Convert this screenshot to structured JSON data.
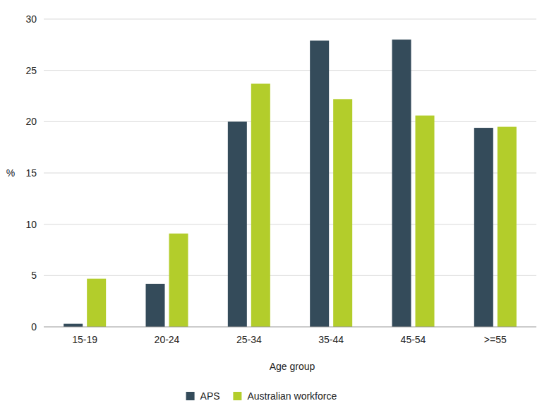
{
  "chart_data": {
    "type": "bar",
    "x_label": "Age group",
    "y_label": "%",
    "categories": [
      "15-19",
      "20-24",
      "25-34",
      "35-44",
      "45-54",
      ">=55"
    ],
    "series": [
      {
        "name": "APS",
        "color": "#344b5a",
        "values": [
          0.3,
          4.2,
          20.0,
          27.9,
          28.0,
          19.4
        ]
      },
      {
        "name": "Australian workforce",
        "color": "#b3cd2b",
        "values": [
          4.7,
          9.1,
          23.7,
          22.2,
          20.6,
          19.5
        ]
      }
    ],
    "ylim": [
      0,
      30
    ],
    "yticks": [
      0,
      5,
      10,
      15,
      20,
      25,
      30
    ],
    "grid": true,
    "legend": "bottom"
  }
}
